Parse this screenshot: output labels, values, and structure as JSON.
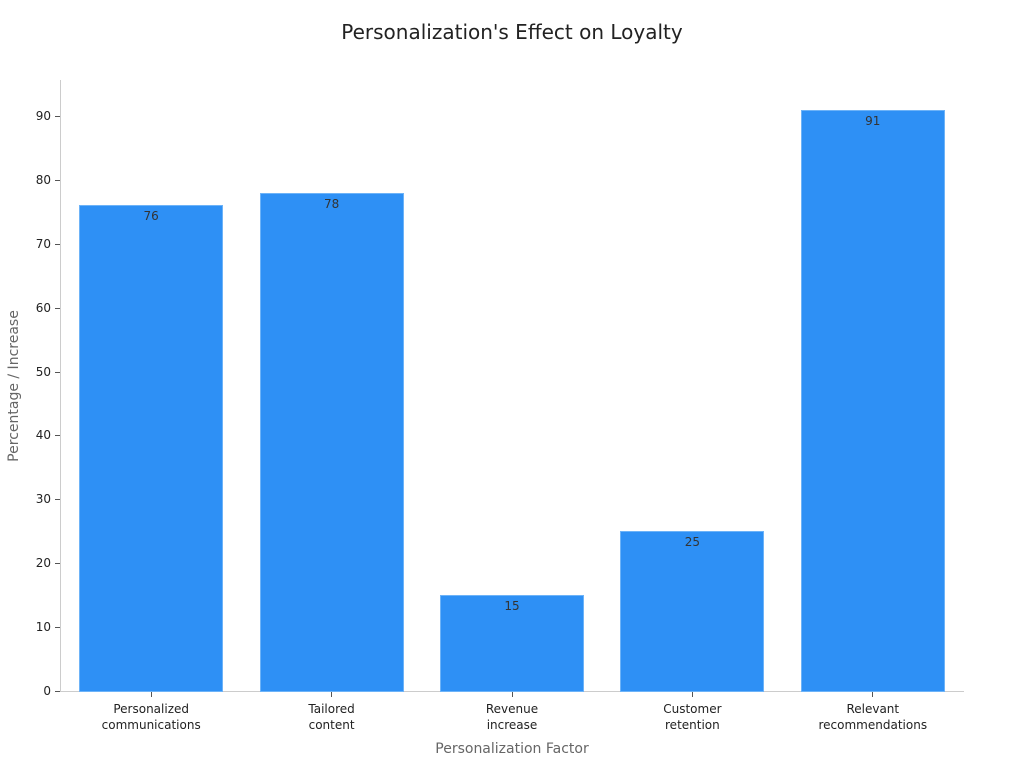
{
  "chart_data": {
    "type": "bar",
    "title": "Personalization's Effect on Loyalty",
    "xlabel": "Personalization Factor",
    "ylabel": "Percentage / Increase",
    "categories": [
      "Personalized communications",
      "Tailored content",
      "Revenue increase",
      "Customer retention",
      "Relevant recommendations"
    ],
    "category_lines": [
      [
        "Personalized",
        "communications"
      ],
      [
        "Tailored",
        "content"
      ],
      [
        "Revenue",
        "increase"
      ],
      [
        "Customer",
        "retention"
      ],
      [
        "Relevant",
        "recommendations"
      ]
    ],
    "values": [
      76,
      78,
      15,
      25,
      91
    ],
    "data_labels": [
      "76",
      "78",
      "15",
      "25",
      "91"
    ],
    "yticks": [
      "0",
      "10",
      "20",
      "30",
      "40",
      "50",
      "60",
      "70",
      "80",
      "90"
    ],
    "ylim": [
      0,
      95.5
    ],
    "grid": false,
    "legend": null,
    "bar_color": "#2e90f5"
  }
}
